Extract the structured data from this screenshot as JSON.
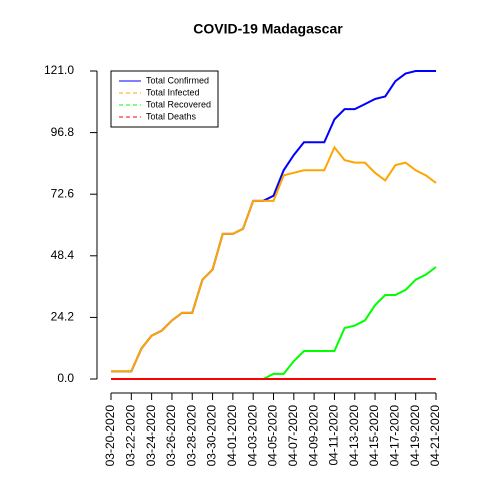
{
  "chart_data": {
    "type": "line",
    "title": "COVID-19 Madagascar",
    "categories": [
      "03-20-2020",
      null,
      "03-22-2020",
      null,
      "03-24-2020",
      null,
      "03-26-2020",
      null,
      "03-28-2020",
      null,
      "03-30-2020",
      null,
      "04-01-2020",
      null,
      "04-03-2020",
      null,
      "04-05-2020",
      null,
      "04-07-2020",
      null,
      "04-09-2020",
      null,
      "04-11-2020",
      null,
      "04-13-2020",
      null,
      "04-15-2020",
      null,
      "04-17-2020",
      null,
      "04-19-2020",
      null,
      "04-21-2020"
    ],
    "series": [
      {
        "name": "Total Confirmed",
        "color": "#0000ff",
        "dashed": false,
        "values": [
          3,
          3,
          3,
          12,
          17,
          19,
          23,
          26,
          26,
          39,
          43,
          57,
          57,
          59,
          70,
          70,
          72,
          82,
          88,
          93,
          93,
          93,
          102,
          106,
          106,
          108,
          110,
          111,
          117,
          120,
          121,
          121,
          121
        ]
      },
      {
        "name": "Total Infected",
        "color": "#ffa500",
        "dashed": true,
        "values": [
          3,
          3,
          3,
          12,
          17,
          19,
          23,
          26,
          26,
          39,
          43,
          57,
          57,
          59,
          70,
          70,
          70,
          80,
          81,
          82,
          82,
          82,
          91,
          86,
          85,
          85,
          81,
          78,
          84,
          85,
          82,
          80,
          77
        ]
      },
      {
        "name": "Total Recovered",
        "color": "#00ff00",
        "dashed": true,
        "values": [
          0,
          0,
          0,
          0,
          0,
          0,
          0,
          0,
          0,
          0,
          0,
          0,
          0,
          0,
          0,
          0,
          2,
          2,
          7,
          11,
          11,
          11,
          11,
          20,
          21,
          23,
          29,
          33,
          33,
          35,
          39,
          41,
          44
        ]
      },
      {
        "name": "Total Deaths",
        "color": "#ff0000",
        "dashed": true,
        "values": [
          0,
          0,
          0,
          0,
          0,
          0,
          0,
          0,
          0,
          0,
          0,
          0,
          0,
          0,
          0,
          0,
          0,
          0,
          0,
          0,
          0,
          0,
          0,
          0,
          0,
          0,
          0,
          0,
          0,
          0,
          0,
          0,
          0
        ]
      }
    ],
    "ylim": [
      0,
      121
    ],
    "yticks": [
      {
        "value": 0,
        "label": "0.0"
      },
      24.2,
      48.4,
      72.6,
      96.8,
      {
        "value": 121,
        "label": "121.0"
      }
    ],
    "legend": "topleft"
  }
}
